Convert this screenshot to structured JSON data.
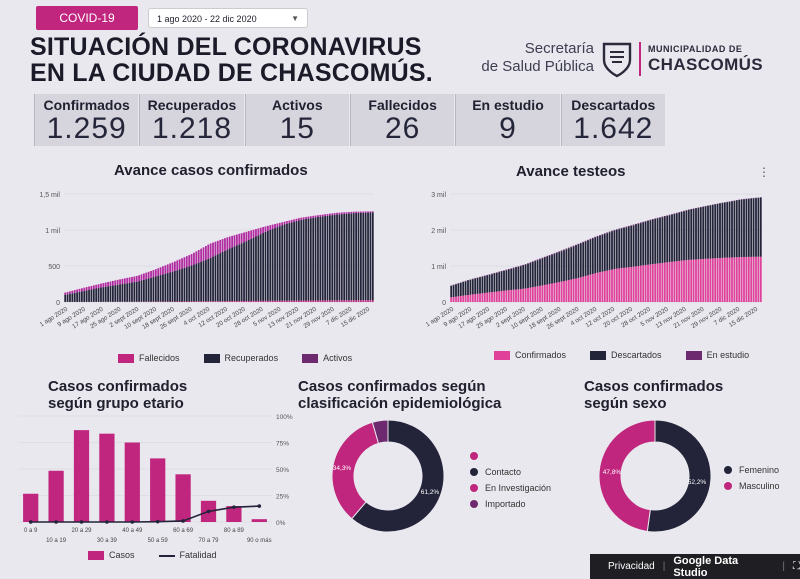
{
  "header": {
    "tag": "COVID-19",
    "date_range": "1 ago 2020 - 22 dic 2020",
    "title_line1": "SITUACIÓN DEL CORONAVIRUS",
    "title_line2": "EN LA CIUDAD DE CHASCOMÚS.",
    "secretaria_line1": "Secretaría",
    "secretaria_line2": "de Salud Pública",
    "municipalidad": "MUNICIPALIDAD DE",
    "chascomus": "CHASCOMÚS"
  },
  "kpis": [
    {
      "label": "Confirmados",
      "value": "1.259"
    },
    {
      "label": "Recuperados",
      "value": "1.218"
    },
    {
      "label": "Activos",
      "value": "15"
    },
    {
      "label": "Fallecidos",
      "value": "26"
    },
    {
      "label": "En estudio",
      "value": "9"
    },
    {
      "label": "Descartados",
      "value": "1.642"
    }
  ],
  "colors": {
    "magenta": "#c0267e",
    "dark": "#23233a",
    "purple": "#6e2a6f",
    "pinklight": "#e24fa4"
  },
  "footer": {
    "privacy": "Privacidad",
    "brand": "Google Data Studio"
  },
  "chart_data": [
    {
      "type": "bar",
      "title": "Avance casos confirmados",
      "stacked": true,
      "x_labels": [
        "1 ago 2020",
        "9 ago 2020",
        "17 ago 2020",
        "25 ago 2020",
        "2 sept 2020",
        "10 sept 2020",
        "18 sept 2020",
        "26 sept 2020",
        "4 oct 2020",
        "12 oct 2020",
        "20 oct 2020",
        "28 oct 2020",
        "5 nov 2020",
        "13 nov 2020",
        "21 nov 2020",
        "29 nov 2020",
        "7 dic 2020",
        "15 dic 2020"
      ],
      "y_ticks": [
        "0",
        "500",
        "1 mil",
        "1,5 mil"
      ],
      "ylim": [
        0,
        1500
      ],
      "series": [
        {
          "name": "Fallecidos",
          "values": [
            1,
            1,
            2,
            3,
            4,
            5,
            6,
            8,
            10,
            12,
            14,
            16,
            18,
            20,
            22,
            24,
            25,
            26
          ]
        },
        {
          "name": "Recuperados",
          "values": [
            100,
            150,
            200,
            240,
            280,
            350,
            420,
            500,
            600,
            720,
            830,
            950,
            1050,
            1120,
            1160,
            1190,
            1210,
            1218
          ]
        },
        {
          "name": "Activos",
          "values": [
            30,
            45,
            55,
            70,
            80,
            100,
            130,
            160,
            200,
            170,
            130,
            80,
            40,
            30,
            25,
            25,
            20,
            15
          ]
        }
      ],
      "legend": [
        "Fallecidos",
        "Recuperados",
        "Activos"
      ]
    },
    {
      "type": "bar",
      "title": "Avance testeos",
      "stacked": true,
      "x_labels": [
        "1 ago 2020",
        "9 ago 2020",
        "17 ago 2020",
        "25 ago 2020",
        "2 sept 2020",
        "10 sept 2020",
        "18 sept 2020",
        "26 sept 2020",
        "4 oct 2020",
        "12 oct 2020",
        "20 oct 2020",
        "28 oct 2020",
        "5 nov 2020",
        "13 nov 2020",
        "21 nov 2020",
        "29 nov 2020",
        "7 dic 2020",
        "15 dic 2020"
      ],
      "y_ticks": [
        "0",
        "1 mil",
        "2 mil",
        "3 mil"
      ],
      "ylim": [
        0,
        3000
      ],
      "series": [
        {
          "name": "Confirmados",
          "values": [
            130,
            200,
            260,
            320,
            370,
            460,
            560,
            670,
            810,
            920,
            980,
            1050,
            1110,
            1170,
            1200,
            1230,
            1250,
            1259
          ]
        },
        {
          "name": "Descartados",
          "values": [
            320,
            410,
            480,
            560,
            650,
            750,
            840,
            930,
            1000,
            1070,
            1150,
            1230,
            1300,
            1380,
            1460,
            1530,
            1600,
            1642
          ]
        },
        {
          "name": "En estudio",
          "values": [
            10,
            12,
            15,
            15,
            18,
            20,
            20,
            20,
            20,
            20,
            18,
            16,
            15,
            14,
            12,
            10,
            10,
            9
          ]
        }
      ],
      "legend": [
        "Confirmados",
        "Descartados",
        "En estudio"
      ]
    },
    {
      "type": "bar",
      "title_line1": "Casos confirmados",
      "title_line2": "según grupo etario",
      "categories": [
        "0 a 9",
        "10 a 19",
        "20 a 29",
        "30 a 39",
        "40 a 49",
        "50 a 59",
        "60 a 69",
        "70 a 79",
        "80 a 89",
        "90 o más"
      ],
      "series": [
        {
          "name": "Casos",
          "values": [
            80,
            145,
            260,
            250,
            225,
            180,
            135,
            60,
            45,
            8
          ]
        },
        {
          "name": "Fatalidad",
          "values": [
            0,
            0,
            0,
            0,
            0,
            0.3,
            1,
            10,
            14,
            15
          ]
        }
      ],
      "ylim": [
        0,
        300
      ],
      "right_ticks": [
        "0%",
        "25%",
        "50%",
        "75%",
        "100%"
      ]
    },
    {
      "type": "pie",
      "title_line1": "Casos confirmados según",
      "title_line2": "clasificación epidemiológica",
      "slices": [
        {
          "name": "Contacto",
          "value": 61.2
        },
        {
          "name": "En Investigación",
          "value": 34.3
        },
        {
          "name": "Importado",
          "value": 4.5
        }
      ],
      "legend_extra_dot": true,
      "labels": [
        "61,2%",
        "34,3%"
      ]
    },
    {
      "type": "pie",
      "title_line1": "Casos confirmados",
      "title_line2": "según sexo",
      "slices": [
        {
          "name": "Femenino",
          "value": 52.2
        },
        {
          "name": "Masculino",
          "value": 47.8
        }
      ],
      "labels": [
        "52,2%",
        "47,8%"
      ]
    }
  ]
}
